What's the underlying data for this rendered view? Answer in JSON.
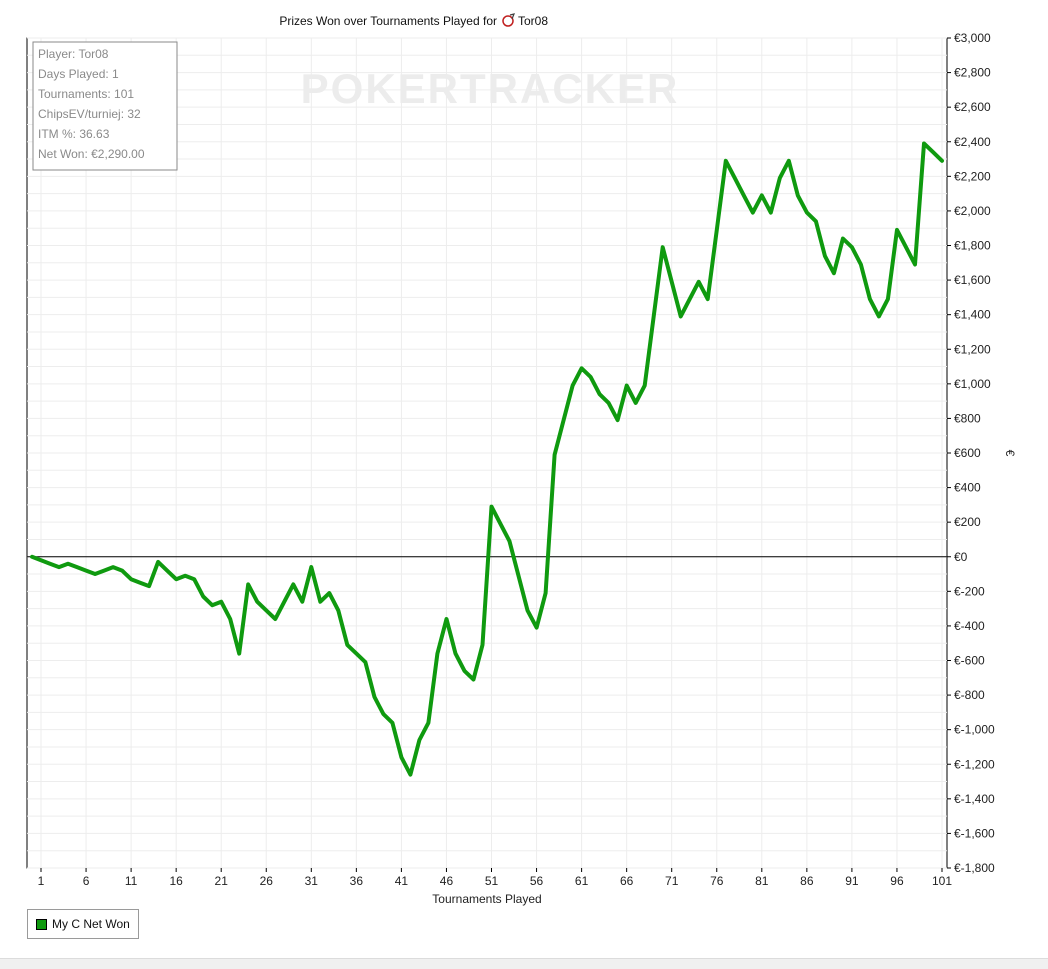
{
  "chart_data": {
    "type": "line",
    "title": "Prizes Won over Tournaments Played for",
    "player_name": "Tor08",
    "xlabel": "Tournaments Played",
    "ylabel": "€",
    "xlim": [
      0,
      101
    ],
    "ylim": [
      -1800,
      3000
    ],
    "x_ticks": [
      1,
      6,
      11,
      16,
      21,
      26,
      31,
      36,
      41,
      46,
      51,
      56,
      61,
      66,
      71,
      76,
      81,
      86,
      91,
      96,
      101
    ],
    "y_ticks": [
      {
        "value": 3000,
        "label": "€3,000"
      },
      {
        "value": 2800,
        "label": "€2,800"
      },
      {
        "value": 2600,
        "label": "€2,600"
      },
      {
        "value": 2400,
        "label": "€2,400"
      },
      {
        "value": 2200,
        "label": "€2,200"
      },
      {
        "value": 2000,
        "label": "€2,000"
      },
      {
        "value": 1800,
        "label": "€1,800"
      },
      {
        "value": 1600,
        "label": "€1,600"
      },
      {
        "value": 1400,
        "label": "€1,400"
      },
      {
        "value": 1200,
        "label": "€1,200"
      },
      {
        "value": 1000,
        "label": "€1,000"
      },
      {
        "value": 800,
        "label": "€800"
      },
      {
        "value": 600,
        "label": "€600"
      },
      {
        "value": 400,
        "label": "€400"
      },
      {
        "value": 200,
        "label": "€200"
      },
      {
        "value": 0,
        "label": "€0"
      },
      {
        "value": -200,
        "label": "€-200"
      },
      {
        "value": -400,
        "label": "€-400"
      },
      {
        "value": -600,
        "label": "€-600"
      },
      {
        "value": -800,
        "label": "€-800"
      },
      {
        "value": -1000,
        "label": "€-1,000"
      },
      {
        "value": -1200,
        "label": "€-1,200"
      },
      {
        "value": -1400,
        "label": "€-1,400"
      },
      {
        "value": -1600,
        "label": "€-1,600"
      },
      {
        "value": -1800,
        "label": "€-1,800"
      }
    ],
    "grid": true,
    "legend_position": "bottom-left",
    "series": [
      {
        "name": "My C Net Won",
        "color": "#0f9a0f",
        "x": [
          0,
          1,
          2,
          3,
          4,
          5,
          6,
          7,
          8,
          9,
          10,
          11,
          12,
          13,
          14,
          15,
          16,
          17,
          18,
          19,
          20,
          21,
          22,
          23,
          24,
          25,
          26,
          27,
          28,
          29,
          30,
          31,
          32,
          33,
          34,
          35,
          36,
          37,
          38,
          39,
          40,
          41,
          42,
          43,
          44,
          45,
          46,
          47,
          48,
          49,
          50,
          51,
          52,
          53,
          54,
          55,
          56,
          57,
          58,
          59,
          60,
          61,
          62,
          63,
          64,
          65,
          66,
          67,
          68,
          69,
          70,
          71,
          72,
          73,
          74,
          75,
          76,
          77,
          78,
          79,
          80,
          81,
          82,
          83,
          84,
          85,
          86,
          87,
          88,
          89,
          90,
          91,
          92,
          93,
          94,
          95,
          96,
          97,
          98,
          99,
          100,
          101
        ],
        "values": [
          0,
          -20,
          -40,
          -60,
          -40,
          -60,
          -80,
          -100,
          -80,
          -60,
          -80,
          -130,
          -150,
          -170,
          -30,
          -80,
          -130,
          -110,
          -130,
          -230,
          -280,
          -260,
          -360,
          -560,
          -160,
          -260,
          -310,
          -360,
          -260,
          -160,
          -260,
          -60,
          -260,
          -210,
          -310,
          -510,
          -560,
          -610,
          -810,
          -910,
          -960,
          -1160,
          -1260,
          -1060,
          -960,
          -560,
          -360,
          -560,
          -660,
          -710,
          -510,
          290,
          190,
          90,
          -110,
          -310,
          -410,
          -210,
          590,
          790,
          990,
          1090,
          1040,
          940,
          890,
          790,
          990,
          890,
          990,
          1390,
          1790,
          1590,
          1390,
          1490,
          1590,
          1490,
          1890,
          2290,
          2190,
          2090,
          1990,
          2090,
          1990,
          2190,
          2290,
          2090,
          1990,
          1940,
          1740,
          1640,
          1840,
          1790,
          1690,
          1490,
          1390,
          1490,
          1890,
          1790,
          1690,
          2390,
          2340,
          2290
        ]
      }
    ]
  },
  "info_box": {
    "player": "Player: Tor08",
    "days_played": "Days Played: 1",
    "tournaments": "Tournaments: 101",
    "chips_ev": "ChipsEV/turniej: 32",
    "itm": "ITM %: 36.63",
    "net_won": "Net Won: €2,290.00"
  },
  "watermark": "POKERTRACKER",
  "legend": {
    "label": "My C Net Won",
    "color": "#0f9a0f"
  }
}
